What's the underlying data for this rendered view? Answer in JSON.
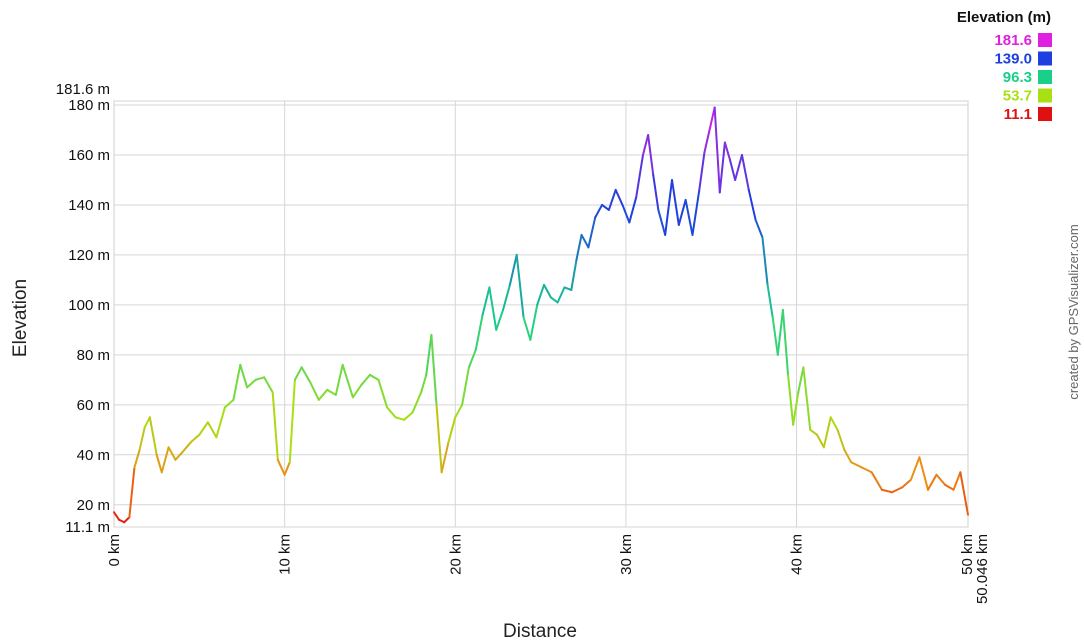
{
  "chart_data": {
    "type": "line",
    "xlabel": "Distance",
    "ylabel": "Elevation",
    "credit": "created by GPSVisualizer.com",
    "ylim": [
      11.1,
      181.6
    ],
    "xlim": [
      0,
      50.046
    ],
    "y_ticks": [
      {
        "value": 11.1,
        "label": "11.1 m"
      },
      {
        "value": 20,
        "label": "20 m"
      },
      {
        "value": 40,
        "label": "40 m"
      },
      {
        "value": 60,
        "label": "60 m"
      },
      {
        "value": 80,
        "label": "80 m"
      },
      {
        "value": 100,
        "label": "100 m"
      },
      {
        "value": 120,
        "label": "120 m"
      },
      {
        "value": 140,
        "label": "140 m"
      },
      {
        "value": 160,
        "label": "160 m"
      },
      {
        "value": 180,
        "label": "180 m"
      },
      {
        "value": 181.6,
        "label": "181.6 m"
      }
    ],
    "x_ticks": [
      {
        "value": 0,
        "label": "0 km"
      },
      {
        "value": 10,
        "label": "10 km"
      },
      {
        "value": 20,
        "label": "20 km"
      },
      {
        "value": 30,
        "label": "30 km"
      },
      {
        "value": 40,
        "label": "40 km"
      },
      {
        "value": 50,
        "label": "50 km"
      },
      {
        "value": 50.046,
        "label": "50.046 km"
      }
    ],
    "legend": {
      "title": "Elevation (m)",
      "items": [
        {
          "label": "181.6",
          "color": "#e020e0"
        },
        {
          "label": "139.0",
          "color": "#1e3fe0"
        },
        {
          "label": "96.3",
          "color": "#18d08a"
        },
        {
          "label": "53.7",
          "color": "#a8e014"
        },
        {
          "label": "11.1",
          "color": "#e01010"
        }
      ]
    },
    "grid": true,
    "series": [
      {
        "x": [
          0,
          0.3,
          0.6,
          0.9,
          1.2,
          1.5,
          1.8,
          2.1,
          2.5,
          2.8,
          3.2,
          3.6,
          4.0,
          4.5,
          5.0,
          5.5,
          6.0,
          6.5,
          7.0,
          7.4,
          7.8,
          8.3,
          8.8,
          9.3,
          9.6,
          10.0,
          10.3,
          10.6,
          11.0,
          11.5,
          12.0,
          12.5,
          13.0,
          13.4,
          14.0,
          14.5,
          15.0,
          15.5,
          16.0,
          16.5,
          17.0,
          17.5,
          18.0,
          18.3,
          18.6,
          18.9,
          19.2,
          19.6,
          20.0,
          20.4,
          20.8,
          21.2,
          21.6,
          22.0,
          22.4,
          22.8,
          23.2,
          23.6,
          24.0,
          24.4,
          24.8,
          25.2,
          25.6,
          26.0,
          26.4,
          26.8,
          27.1,
          27.4,
          27.8,
          28.2,
          28.6,
          29.0,
          29.4,
          29.8,
          30.2,
          30.6,
          31.0,
          31.3,
          31.6,
          31.9,
          32.3,
          32.7,
          33.1,
          33.5,
          33.9,
          34.3,
          34.6,
          34.9,
          35.2,
          35.5,
          35.8,
          36.1,
          36.4,
          36.8,
          37.2,
          37.6,
          38.0,
          38.3,
          38.6,
          38.9,
          39.2,
          39.5,
          39.8,
          40.1,
          40.4,
          40.8,
          41.2,
          41.6,
          42.0,
          42.4,
          42.8,
          43.2,
          43.8,
          44.4,
          45.0,
          45.6,
          46.2,
          46.7,
          47.2,
          47.7,
          48.2,
          48.7,
          49.2,
          49.6,
          50.046
        ],
        "y": [
          17,
          14,
          13,
          15,
          35,
          42,
          51,
          55,
          40,
          33,
          43,
          38,
          41,
          45,
          48,
          53,
          47,
          59,
          62,
          76,
          67,
          70,
          71,
          65,
          38,
          32,
          37,
          70,
          75,
          69,
          62,
          66,
          64,
          76,
          63,
          68,
          72,
          70,
          59,
          55,
          54,
          57,
          65,
          72,
          88,
          60,
          33,
          45,
          55,
          60,
          75,
          82,
          96,
          107,
          90,
          98,
          108,
          120,
          95,
          86,
          100,
          108,
          103,
          101,
          107,
          106,
          118,
          128,
          123,
          135,
          140,
          138,
          146,
          140,
          133,
          143,
          160,
          168,
          152,
          138,
          128,
          150,
          132,
          142,
          128,
          146,
          161,
          170,
          179,
          145,
          165,
          158,
          150,
          160,
          146,
          134,
          127,
          108,
          95,
          80,
          98,
          72,
          52,
          65,
          75,
          50,
          48,
          43,
          55,
          50,
          42,
          37,
          35,
          33,
          26,
          25,
          27,
          30,
          39,
          26,
          32,
          28,
          26,
          33,
          16
        ]
      }
    ]
  }
}
